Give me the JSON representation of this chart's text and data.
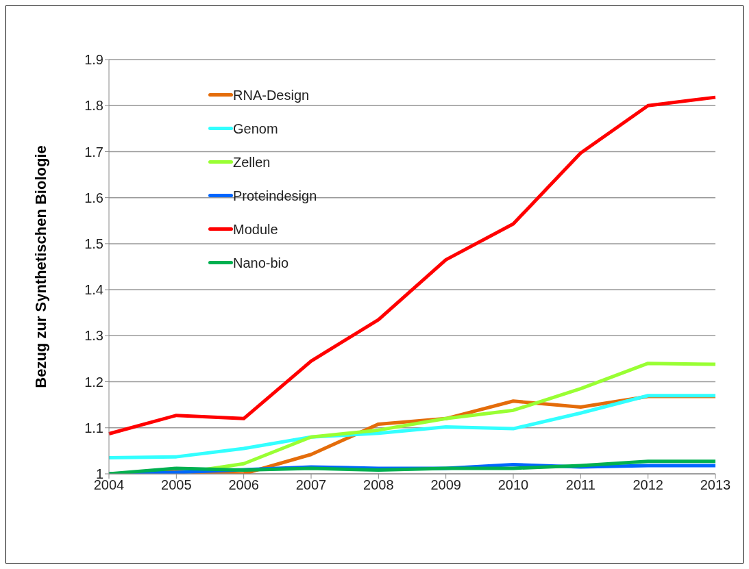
{
  "chart_data": {
    "type": "line",
    "ylabel": "Bezug zur Synthetischen Biologie",
    "categories": [
      "2004",
      "2005",
      "2006",
      "2007",
      "2008",
      "2009",
      "2010",
      "2011",
      "2012",
      "2013"
    ],
    "ylim": [
      1,
      1.9
    ],
    "yticks": [
      {
        "value": 1,
        "label": "1"
      },
      1.1,
      1.2,
      1.3,
      1.4,
      1.5,
      1.6,
      1.7,
      1.8,
      1.9
    ],
    "grid": "y",
    "legend": "top left",
    "marker": "none",
    "line_style": "solid",
    "series": [
      {
        "name": "RNA-Design",
        "color": "#e46c0a",
        "values": [
          1.0,
          1.005,
          1.0,
          1.042,
          1.108,
          1.12,
          1.158,
          1.145,
          1.168,
          1.168
        ]
      },
      {
        "name": "Genom",
        "color": "#33ffff",
        "values": [
          1.035,
          1.037,
          1.055,
          1.08,
          1.088,
          1.102,
          1.098,
          1.132,
          1.17,
          1.17
        ]
      },
      {
        "name": "Zellen",
        "color": "#99ff33",
        "values": [
          1.0,
          1.0,
          1.022,
          1.08,
          1.095,
          1.12,
          1.138,
          1.185,
          1.24,
          1.238
        ]
      },
      {
        "name": "Proteindesign",
        "color": "#0066ff",
        "values": [
          1.0,
          1.003,
          null,
          1.015,
          1.012,
          1.012,
          1.02,
          1.015,
          1.018,
          1.018
        ]
      },
      {
        "name": "Module",
        "color": "#ff0000",
        "values": [
          1.087,
          1.127,
          1.12,
          1.245,
          1.335,
          1.465,
          1.543,
          1.697,
          1.8,
          1.818
        ]
      },
      {
        "name": "Nano-bio",
        "color": "#00b050",
        "values": [
          1.0,
          1.012,
          1.008,
          1.012,
          1.008,
          1.012,
          1.012,
          1.018,
          1.027,
          1.027
        ]
      }
    ]
  }
}
